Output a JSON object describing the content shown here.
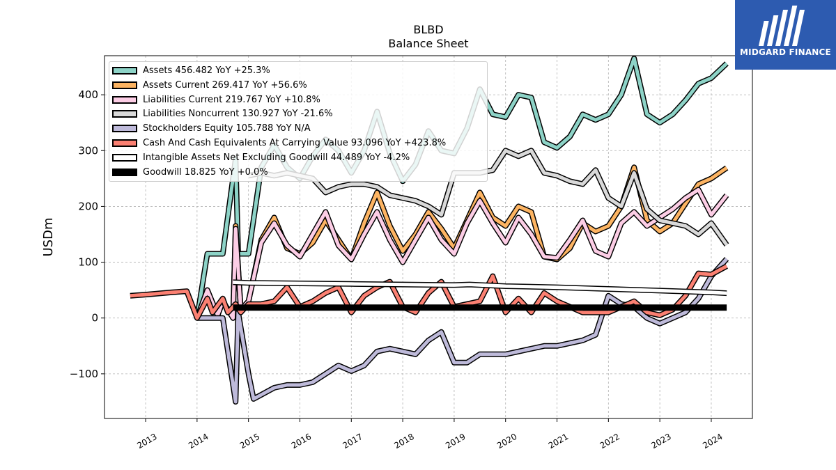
{
  "header": {
    "title": "BLBD",
    "subtitle": "Balance  Sheet"
  },
  "logo": {
    "text": "MIDGARD FINANCE"
  },
  "colors": {
    "background": "#ffffff",
    "grid": "#b0b0b0",
    "logo_bg": "#2d5bb0"
  },
  "chart_data": {
    "type": "line",
    "title": "BLBD",
    "subtitle": "Balance  Sheet",
    "ylabel": "USDm",
    "xlabel": "",
    "ylim": [
      -180,
      470
    ],
    "xlim": [
      2012.2,
      2024.8
    ],
    "grid": true,
    "legend_position": "top-left",
    "x_ticks": [
      2013,
      2014,
      2015,
      2016,
      2017,
      2018,
      2019,
      2020,
      2021,
      2022,
      2023,
      2024
    ],
    "x_tick_labels": [
      "2013",
      "2014",
      "2015",
      "2016",
      "2017",
      "2018",
      "2019",
      "2020",
      "2021",
      "2022",
      "2023",
      "2024"
    ],
    "y_ticks": [
      -100,
      0,
      100,
      200,
      300,
      400
    ],
    "y_tick_labels": [
      "−100",
      "0",
      "100",
      "200",
      "300",
      "400"
    ],
    "series": [
      {
        "name": "Assets",
        "legend": "Assets  456.482 YoY +25.3%",
        "color": "#8dd3c7",
        "width": 5,
        "points": [
          [
            2014.0,
            0
          ],
          [
            2014.2,
            115
          ],
          [
            2014.5,
            115
          ],
          [
            2014.75,
            285
          ],
          [
            2014.8,
            115
          ],
          [
            2015.0,
            115
          ],
          [
            2015.25,
            270
          ],
          [
            2015.5,
            310
          ],
          [
            2015.75,
            270
          ],
          [
            2016.0,
            250
          ],
          [
            2016.25,
            290
          ],
          [
            2016.5,
            320
          ],
          [
            2016.75,
            300
          ],
          [
            2017.0,
            260
          ],
          [
            2017.25,
            300
          ],
          [
            2017.5,
            370
          ],
          [
            2017.75,
            295
          ],
          [
            2018.0,
            245
          ],
          [
            2018.25,
            275
          ],
          [
            2018.5,
            335
          ],
          [
            2018.75,
            300
          ],
          [
            2019.0,
            295
          ],
          [
            2019.25,
            340
          ],
          [
            2019.5,
            410
          ],
          [
            2019.75,
            365
          ],
          [
            2020.0,
            360
          ],
          [
            2020.25,
            400
          ],
          [
            2020.5,
            395
          ],
          [
            2020.75,
            315
          ],
          [
            2021.0,
            305
          ],
          [
            2021.25,
            325
          ],
          [
            2021.5,
            365
          ],
          [
            2021.75,
            355
          ],
          [
            2022.0,
            365
          ],
          [
            2022.25,
            400
          ],
          [
            2022.5,
            465
          ],
          [
            2022.75,
            365
          ],
          [
            2023.0,
            350
          ],
          [
            2023.25,
            365
          ],
          [
            2023.5,
            390
          ],
          [
            2023.75,
            420
          ],
          [
            2024.0,
            430
          ],
          [
            2024.3,
            456
          ]
        ]
      },
      {
        "name": "Assets Current",
        "legend": "Assets Current  269.417 YoY +56.6%",
        "color": "#fdb462",
        "width": 5,
        "points": [
          [
            2014.0,
            0
          ],
          [
            2014.2,
            50
          ],
          [
            2014.4,
            5
          ],
          [
            2014.5,
            30
          ],
          [
            2014.7,
            0
          ],
          [
            2014.75,
            165
          ],
          [
            2014.85,
            15
          ],
          [
            2015.0,
            30
          ],
          [
            2015.25,
            140
          ],
          [
            2015.5,
            180
          ],
          [
            2015.75,
            125
          ],
          [
            2016.0,
            115
          ],
          [
            2016.25,
            135
          ],
          [
            2016.5,
            175
          ],
          [
            2016.75,
            140
          ],
          [
            2017.0,
            105
          ],
          [
            2017.25,
            170
          ],
          [
            2017.5,
            225
          ],
          [
            2017.75,
            165
          ],
          [
            2018.0,
            120
          ],
          [
            2018.25,
            150
          ],
          [
            2018.5,
            190
          ],
          [
            2018.75,
            160
          ],
          [
            2019.0,
            125
          ],
          [
            2019.25,
            175
          ],
          [
            2019.5,
            225
          ],
          [
            2019.75,
            180
          ],
          [
            2020.0,
            165
          ],
          [
            2020.25,
            200
          ],
          [
            2020.5,
            190
          ],
          [
            2020.75,
            110
          ],
          [
            2021.0,
            105
          ],
          [
            2021.25,
            125
          ],
          [
            2021.5,
            170
          ],
          [
            2021.75,
            155
          ],
          [
            2022.0,
            165
          ],
          [
            2022.25,
            200
          ],
          [
            2022.5,
            270
          ],
          [
            2022.75,
            175
          ],
          [
            2023.0,
            155
          ],
          [
            2023.25,
            170
          ],
          [
            2023.5,
            205
          ],
          [
            2023.75,
            240
          ],
          [
            2024.0,
            250
          ],
          [
            2024.3,
            269
          ]
        ]
      },
      {
        "name": "Liabilities Current",
        "legend": "Liabilities Current  219.767 YoY +10.8%",
        "color": "#fccde5",
        "width": 5,
        "points": [
          [
            2014.0,
            0
          ],
          [
            2014.2,
            50
          ],
          [
            2014.4,
            5
          ],
          [
            2014.5,
            30
          ],
          [
            2014.7,
            0
          ],
          [
            2014.75,
            160
          ],
          [
            2014.85,
            15
          ],
          [
            2015.0,
            30
          ],
          [
            2015.25,
            135
          ],
          [
            2015.5,
            170
          ],
          [
            2015.75,
            130
          ],
          [
            2016.0,
            110
          ],
          [
            2016.25,
            150
          ],
          [
            2016.5,
            190
          ],
          [
            2016.75,
            130
          ],
          [
            2017.0,
            105
          ],
          [
            2017.25,
            150
          ],
          [
            2017.5,
            190
          ],
          [
            2017.75,
            140
          ],
          [
            2018.0,
            100
          ],
          [
            2018.25,
            140
          ],
          [
            2018.5,
            180
          ],
          [
            2018.75,
            140
          ],
          [
            2019.0,
            115
          ],
          [
            2019.25,
            170
          ],
          [
            2019.5,
            210
          ],
          [
            2019.75,
            170
          ],
          [
            2020.0,
            135
          ],
          [
            2020.25,
            180
          ],
          [
            2020.5,
            150
          ],
          [
            2020.75,
            110
          ],
          [
            2021.0,
            108
          ],
          [
            2021.25,
            140
          ],
          [
            2021.5,
            175
          ],
          [
            2021.75,
            120
          ],
          [
            2022.0,
            110
          ],
          [
            2022.25,
            170
          ],
          [
            2022.5,
            190
          ],
          [
            2022.75,
            165
          ],
          [
            2023.0,
            180
          ],
          [
            2023.25,
            195
          ],
          [
            2023.5,
            215
          ],
          [
            2023.75,
            230
          ],
          [
            2024.0,
            185
          ],
          [
            2024.3,
            220
          ]
        ]
      },
      {
        "name": "Liabilities Noncurrent",
        "legend": "Liabilities Noncurrent  130.927 YoY -21.6%",
        "color": "#d9d9d9",
        "width": 5,
        "points": [
          [
            2015.0,
            255
          ],
          [
            2015.25,
            260
          ],
          [
            2015.5,
            255
          ],
          [
            2015.75,
            260
          ],
          [
            2016.0,
            255
          ],
          [
            2016.25,
            250
          ],
          [
            2016.5,
            225
          ],
          [
            2016.75,
            235
          ],
          [
            2017.0,
            240
          ],
          [
            2017.25,
            240
          ],
          [
            2017.5,
            235
          ],
          [
            2017.75,
            220
          ],
          [
            2018.0,
            215
          ],
          [
            2018.25,
            210
          ],
          [
            2018.5,
            200
          ],
          [
            2018.75,
            185
          ],
          [
            2019.0,
            260
          ],
          [
            2019.25,
            260
          ],
          [
            2019.5,
            260
          ],
          [
            2019.75,
            265
          ],
          [
            2020.0,
            300
          ],
          [
            2020.25,
            290
          ],
          [
            2020.5,
            300
          ],
          [
            2020.75,
            260
          ],
          [
            2021.0,
            255
          ],
          [
            2021.25,
            245
          ],
          [
            2021.5,
            240
          ],
          [
            2021.75,
            265
          ],
          [
            2022.0,
            215
          ],
          [
            2022.25,
            200
          ],
          [
            2022.5,
            260
          ],
          [
            2022.75,
            195
          ],
          [
            2023.0,
            175
          ],
          [
            2023.25,
            170
          ],
          [
            2023.5,
            165
          ],
          [
            2023.75,
            150
          ],
          [
            2024.0,
            170
          ],
          [
            2024.3,
            131
          ]
        ]
      },
      {
        "name": "Stockholders Equity",
        "legend": "Stockholders Equity  105.788 YoY N/A",
        "color": "#bebada",
        "width": 5,
        "points": [
          [
            2014.0,
            0
          ],
          [
            2014.2,
            0
          ],
          [
            2014.5,
            0
          ],
          [
            2014.75,
            -150
          ],
          [
            2014.8,
            10
          ],
          [
            2015.0,
            -100
          ],
          [
            2015.1,
            -145
          ],
          [
            2015.5,
            -125
          ],
          [
            2015.75,
            -120
          ],
          [
            2016.0,
            -120
          ],
          [
            2016.25,
            -115
          ],
          [
            2016.5,
            -100
          ],
          [
            2016.75,
            -85
          ],
          [
            2017.0,
            -95
          ],
          [
            2017.25,
            -85
          ],
          [
            2017.5,
            -60
          ],
          [
            2017.75,
            -55
          ],
          [
            2018.0,
            -60
          ],
          [
            2018.25,
            -65
          ],
          [
            2018.5,
            -40
          ],
          [
            2018.75,
            -25
          ],
          [
            2019.0,
            -80
          ],
          [
            2019.25,
            -80
          ],
          [
            2019.5,
            -65
          ],
          [
            2019.75,
            -65
          ],
          [
            2020.0,
            -65
          ],
          [
            2020.25,
            -60
          ],
          [
            2020.5,
            -55
          ],
          [
            2020.75,
            -50
          ],
          [
            2021.0,
            -50
          ],
          [
            2021.25,
            -45
          ],
          [
            2021.5,
            -40
          ],
          [
            2021.75,
            -30
          ],
          [
            2022.0,
            40
          ],
          [
            2022.25,
            25
          ],
          [
            2022.5,
            20
          ],
          [
            2022.75,
            0
          ],
          [
            2023.0,
            -10
          ],
          [
            2023.25,
            0
          ],
          [
            2023.5,
            10
          ],
          [
            2023.75,
            35
          ],
          [
            2024.0,
            75
          ],
          [
            2024.3,
            106
          ]
        ]
      },
      {
        "name": "Cash And Cash Equivalents At Carrying Value",
        "legend": "Cash And Cash Equivalents At Carrying Value  93.096 YoY +423.8%",
        "color": "#fb8072",
        "width": 5,
        "points": [
          [
            2012.7,
            40
          ],
          [
            2013.0,
            42
          ],
          [
            2013.5,
            46
          ],
          [
            2013.8,
            48
          ],
          [
            2014.0,
            0
          ],
          [
            2014.2,
            35
          ],
          [
            2014.3,
            10
          ],
          [
            2014.5,
            35
          ],
          [
            2014.6,
            10
          ],
          [
            2014.75,
            25
          ],
          [
            2014.85,
            10
          ],
          [
            2015.0,
            25
          ],
          [
            2015.25,
            25
          ],
          [
            2015.5,
            30
          ],
          [
            2015.75,
            55
          ],
          [
            2016.0,
            20
          ],
          [
            2016.25,
            30
          ],
          [
            2016.5,
            45
          ],
          [
            2016.75,
            55
          ],
          [
            2017.0,
            10
          ],
          [
            2017.25,
            40
          ],
          [
            2017.5,
            55
          ],
          [
            2017.75,
            65
          ],
          [
            2018.0,
            20
          ],
          [
            2018.25,
            10
          ],
          [
            2018.5,
            45
          ],
          [
            2018.75,
            65
          ],
          [
            2019.0,
            20
          ],
          [
            2019.25,
            25
          ],
          [
            2019.5,
            30
          ],
          [
            2019.75,
            75
          ],
          [
            2020.0,
            10
          ],
          [
            2020.25,
            35
          ],
          [
            2020.5,
            10
          ],
          [
            2020.75,
            45
          ],
          [
            2021.0,
            30
          ],
          [
            2021.25,
            20
          ],
          [
            2021.5,
            10
          ],
          [
            2021.75,
            10
          ],
          [
            2022.0,
            10
          ],
          [
            2022.25,
            20
          ],
          [
            2022.5,
            30
          ],
          [
            2022.75,
            10
          ],
          [
            2023.0,
            5
          ],
          [
            2023.25,
            15
          ],
          [
            2023.5,
            40
          ],
          [
            2023.75,
            80
          ],
          [
            2024.0,
            78
          ],
          [
            2024.3,
            93
          ]
        ]
      },
      {
        "name": "Intangible Assets Net Excluding Goodwill",
        "legend": "Intangible Assets Net Excluding Goodwill  44.489 YoY -4.2%",
        "color": "#ffffff",
        "width": 5,
        "points": [
          [
            2014.7,
            64
          ],
          [
            2015.0,
            63
          ],
          [
            2016.0,
            62
          ],
          [
            2017.0,
            61
          ],
          [
            2018.0,
            60
          ],
          [
            2019.0,
            59
          ],
          [
            2019.3,
            60
          ],
          [
            2020.0,
            57
          ],
          [
            2021.0,
            55
          ],
          [
            2022.0,
            52
          ],
          [
            2023.0,
            49
          ],
          [
            2024.0,
            46
          ],
          [
            2024.3,
            44.5
          ]
        ]
      },
      {
        "name": "Goodwill",
        "legend": "Goodwill  18.825 YoY +0.0%",
        "color": "#000000",
        "width": 7,
        "points": [
          [
            2014.7,
            18.8
          ],
          [
            2024.3,
            18.8
          ]
        ]
      }
    ]
  }
}
